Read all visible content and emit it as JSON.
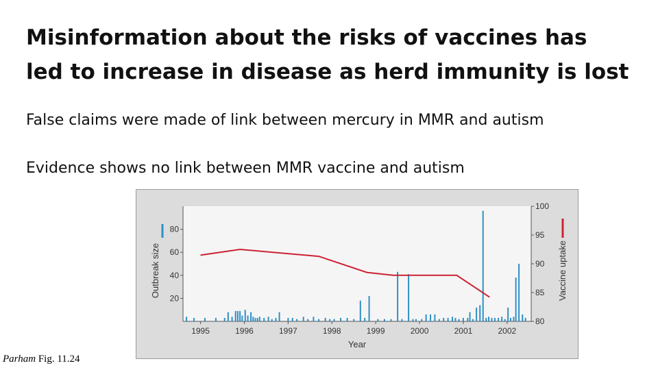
{
  "slide": {
    "title_line1": "Misinformation about the risks of vaccines has",
    "title_line2": "led to increase in disease as herd immunity is lost",
    "bullet1": "False claims were made of link between mercury in MMR and autism",
    "bullet2": "Evidence shows no link between MMR vaccine and autism",
    "caption_author": "Parham",
    "caption_ref": "Fig. 11.24"
  },
  "colors": {
    "bar": "#2f8fc4",
    "line": "#cc2233",
    "panel": "#dcdcdc",
    "plot": "#f5f5f5"
  },
  "chart_data": {
    "type": "bar",
    "title": "",
    "xlabel": "Year",
    "ylabel_left": "Outbreak size",
    "ylabel_right": "Vaccine uptake",
    "x_tick_labels": [
      "1995",
      "1996",
      "1997",
      "1998",
      "1999",
      "2000",
      "2001",
      "2002"
    ],
    "xlim": [
      1994.6,
      2002.55
    ],
    "ylim_left": [
      0,
      100
    ],
    "y_ticks_left": [
      "20",
      "40",
      "60",
      "80"
    ],
    "ylim_right": [
      80,
      100
    ],
    "y_ticks_right": [
      "80",
      "85",
      "90",
      "95",
      "100"
    ],
    "legend": [
      "bars: outbreak size (left axis)",
      "line: vaccine uptake (right axis)"
    ],
    "outbreaks": {
      "x": [
        1994.68,
        1994.85,
        1995.1,
        1995.35,
        1995.55,
        1995.63,
        1995.72,
        1995.8,
        1995.85,
        1995.9,
        1995.95,
        1996.02,
        1996.08,
        1996.15,
        1996.2,
        1996.25,
        1996.3,
        1996.35,
        1996.45,
        1996.55,
        1996.63,
        1996.72,
        1996.8,
        1997.0,
        1997.1,
        1997.2,
        1997.35,
        1997.45,
        1997.58,
        1997.7,
        1997.85,
        1997.95,
        1998.05,
        1998.2,
        1998.35,
        1998.5,
        1998.65,
        1998.75,
        1998.85,
        1999.05,
        1999.2,
        1999.35,
        1999.5,
        1999.6,
        1999.75,
        1999.85,
        1999.92,
        2000.05,
        2000.15,
        2000.25,
        2000.35,
        2000.45,
        2000.55,
        2000.65,
        2000.75,
        2000.82,
        2000.9,
        2001.0,
        2001.1,
        2001.15,
        2001.22,
        2001.3,
        2001.38,
        2001.45,
        2001.52,
        2001.58,
        2001.65,
        2001.72,
        2001.8,
        2001.88,
        2001.95,
        2002.02,
        2002.08,
        2002.15,
        2002.2,
        2002.27,
        2002.35,
        2002.42
      ],
      "values": [
        4,
        3,
        3,
        3,
        3,
        8,
        4,
        9,
        9,
        9,
        5,
        10,
        5,
        8,
        4,
        3,
        3,
        4,
        3,
        4,
        2,
        3,
        8,
        3,
        3,
        2,
        4,
        2,
        4,
        2,
        3,
        2,
        2,
        3,
        3,
        2,
        18,
        3,
        22,
        2,
        2,
        2,
        43,
        2,
        41,
        2,
        2,
        2,
        6,
        6,
        6,
        2,
        3,
        3,
        4,
        3,
        2,
        3,
        3,
        8,
        2,
        12,
        14,
        96,
        3,
        4,
        3,
        3,
        3,
        4,
        2,
        12,
        3,
        4,
        38,
        50,
        6,
        3
      ]
    },
    "uptake": {
      "x": [
        1995.0,
        1995.9,
        1997.7,
        1998.8,
        1999.4,
        2000.85,
        2001.6
      ],
      "values": [
        91.5,
        92.5,
        91.3,
        88.5,
        88.0,
        88.0,
        84.2
      ]
    }
  }
}
